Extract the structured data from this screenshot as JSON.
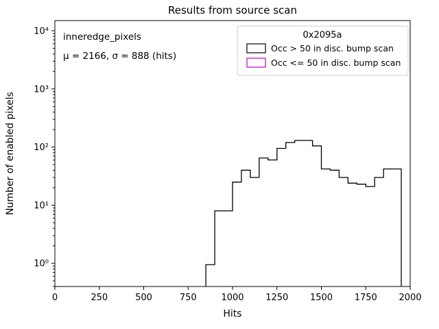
{
  "title": "Results from source scan",
  "xlabel": "Hits",
  "ylabel": "Number of enabled pixels",
  "annotation": {
    "line1": "inneredge_pixels",
    "line2": "μ = 2166, σ = 888 (hits)"
  },
  "legend": {
    "title": "0x2095a",
    "entries": [
      {
        "label": "Occ > 50 in disc. bump scan",
        "color": "#000000"
      },
      {
        "label": "Occ <= 50 in disc. bump scan",
        "color": "#bf00bf"
      }
    ]
  },
  "chart_data": {
    "type": "bar",
    "subtype": "step-histogram",
    "title": "Results from source scan",
    "xlabel": "Hits",
    "ylabel": "Number of enabled pixels",
    "xlim": [
      0,
      2000
    ],
    "ylim": [
      0.4,
      15000
    ],
    "yscale": "log",
    "grid": false,
    "legend_position": "upper right",
    "x_ticks": [
      0,
      250,
      500,
      750,
      1000,
      1250,
      1500,
      1750,
      2000
    ],
    "y_ticks": [
      1,
      10,
      100,
      1000,
      10000
    ],
    "y_tick_labels": [
      "10⁰",
      "10¹",
      "10²",
      "10³",
      "10⁴"
    ],
    "bin_edges": [
      850,
      900,
      950,
      1000,
      1050,
      1100,
      1150,
      1200,
      1250,
      1300,
      1350,
      1400,
      1450,
      1500,
      1550,
      1600,
      1650,
      1700,
      1750,
      1800,
      1850,
      1900,
      1950
    ],
    "series": [
      {
        "name": "Occ > 50 in disc. bump scan",
        "color": "#000000",
        "counts": [
          0.95,
          8,
          8,
          25,
          40,
          30,
          65,
          60,
          95,
          120,
          130,
          130,
          105,
          42,
          40,
          30,
          24,
          23,
          21,
          30,
          42,
          42
        ]
      },
      {
        "name": "Occ <= 50 in disc. bump scan",
        "color": "#bf00bf",
        "counts": []
      }
    ]
  }
}
